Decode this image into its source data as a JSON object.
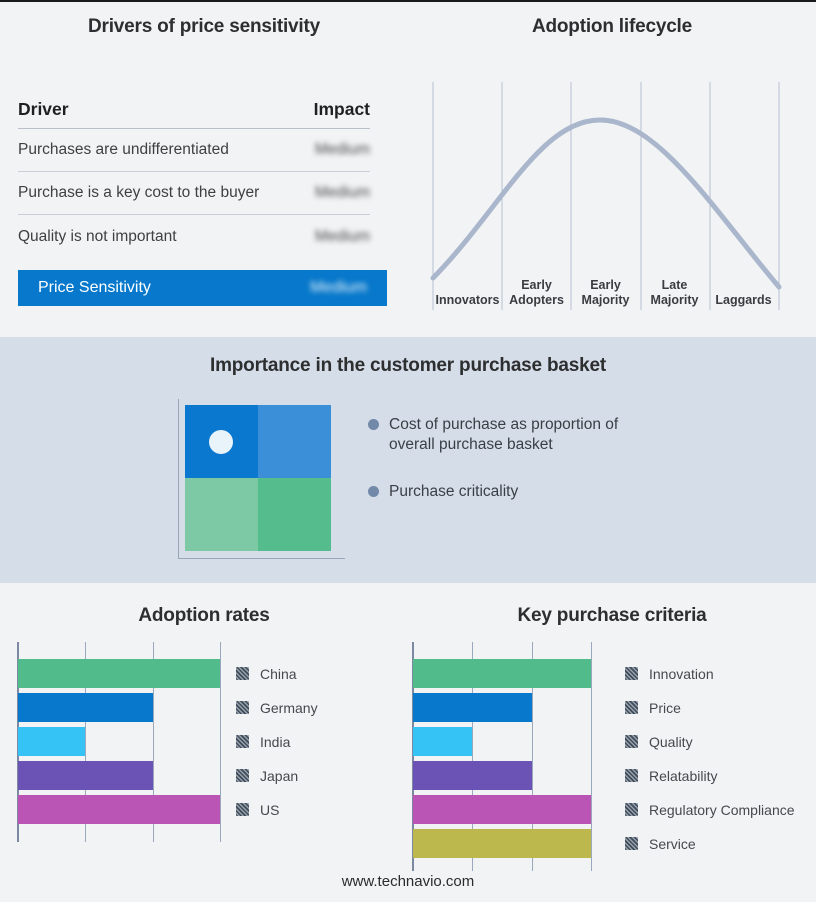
{
  "footer": {
    "url": "www.technavio.com"
  },
  "basket_panel": {
    "title": "Importance in the customer purchase basket",
    "bullets": [
      "Cost of purchase as proportion of overall purchase basket",
      "Purchase criticality"
    ],
    "quadrant_colors": {
      "top_left": "#0b78d0",
      "top_right": "#3a8fd8",
      "bottom_left": "#7ec9a5",
      "bottom_right": "#55bd8d"
    },
    "marker": "white dot in top-left quadrant",
    "band_background": "#d5dde8"
  },
  "chart_data": [
    {
      "id": "drivers_table",
      "type": "table",
      "title": "Drivers of price sensitivity",
      "columns": [
        "Driver",
        "Impact"
      ],
      "rows": [
        [
          "Purchases are undifferentiated",
          "Medium"
        ],
        [
          "Purchase is a key cost to the buyer",
          "Medium"
        ],
        [
          "Quality is not important",
          "Medium"
        ],
        [
          "Price Sensitivity",
          "Medium"
        ]
      ],
      "notes": "Impact values appear blurred in source; last row highlighted on blue bar",
      "highlight_color": "#0778cb"
    },
    {
      "id": "adoption_lifecycle",
      "type": "line",
      "title": "Adoption lifecycle",
      "categories": [
        "Innovators",
        "Early Adopters",
        "Early Majority",
        "Late Majority",
        "Laggards"
      ],
      "shape": "bell_curve",
      "peak_category": "Early Majority",
      "curve_color": "#a9b6cb",
      "grid": true,
      "gridline_color": "#b5c0d2"
    },
    {
      "id": "adoption_rates",
      "type": "bar",
      "orientation": "horizontal",
      "title": "Adoption rates",
      "categories": [
        "China",
        "Germany",
        "India",
        "Japan",
        "US"
      ],
      "values": [
        3,
        2,
        1,
        2,
        3
      ],
      "xlim": [
        0,
        3
      ],
      "colors": [
        "#52bb8b",
        "#0878cc",
        "#35c2f5",
        "#6a53b5",
        "#ba55b5"
      ],
      "legend_position": "right",
      "grid": true
    },
    {
      "id": "key_purchase_criteria",
      "type": "bar",
      "orientation": "horizontal",
      "title": "Key purchase criteria",
      "categories": [
        "Innovation",
        "Price",
        "Quality",
        "Relatability",
        "Regulatory Compliance",
        "Service"
      ],
      "values": [
        3,
        2,
        1,
        2,
        3,
        3
      ],
      "xlim": [
        0,
        3
      ],
      "colors": [
        "#52bb8b",
        "#0878cc",
        "#35c2f5",
        "#6a53b5",
        "#ba55b5",
        "#bcb84e"
      ],
      "legend_position": "right",
      "grid": true
    }
  ]
}
